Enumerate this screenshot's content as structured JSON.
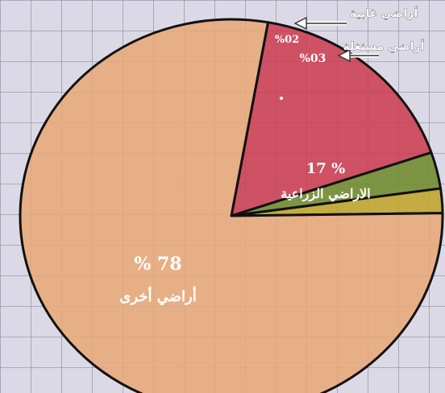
{
  "chart_data": {
    "type": "pie",
    "slices": [
      {
        "value": 17,
        "label": "الاراضي الزراعية",
        "value_text": "17 %",
        "color": "#cc3d52"
      },
      {
        "value": 3,
        "label": "أراضي مستغلة",
        "value_text": "%03",
        "color": "#6f8a2e"
      },
      {
        "value": 2,
        "label": "أراضي غابية",
        "value_text": "%02",
        "color": "#c0a52c"
      },
      {
        "value": 78,
        "label": "أراضي أخرى",
        "value_text": "% 78",
        "color": "#e7a878"
      }
    ]
  }
}
